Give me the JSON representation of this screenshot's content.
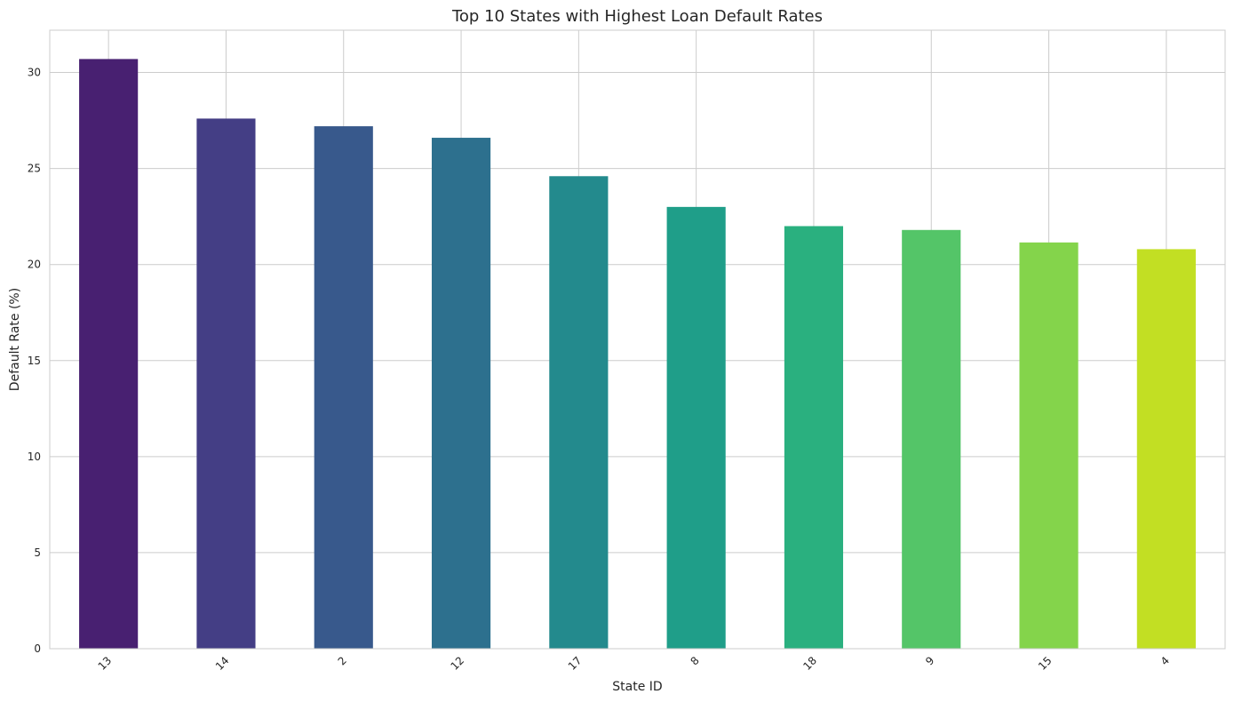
{
  "chart_data": {
    "type": "bar",
    "title": "Top 10 States with Highest Loan Default Rates",
    "xlabel": "State ID",
    "ylabel": "Default Rate (%)",
    "categories": [
      "13",
      "14",
      "2",
      "12",
      "17",
      "8",
      "18",
      "9",
      "15",
      "4"
    ],
    "values": [
      30.7,
      27.6,
      27.2,
      26.6,
      24.6,
      23.0,
      22.0,
      21.8,
      21.15,
      20.8
    ],
    "colors": [
      "#482071",
      "#443e85",
      "#38598c",
      "#2d708e",
      "#238a8d",
      "#1f9e89",
      "#2ab07f",
      "#54c568",
      "#84d44b",
      "#c2df23"
    ],
    "ylim": [
      0,
      32.2
    ],
    "yticks": [
      0,
      5,
      10,
      15,
      20,
      25,
      30
    ],
    "grid": true,
    "legend": "none"
  }
}
